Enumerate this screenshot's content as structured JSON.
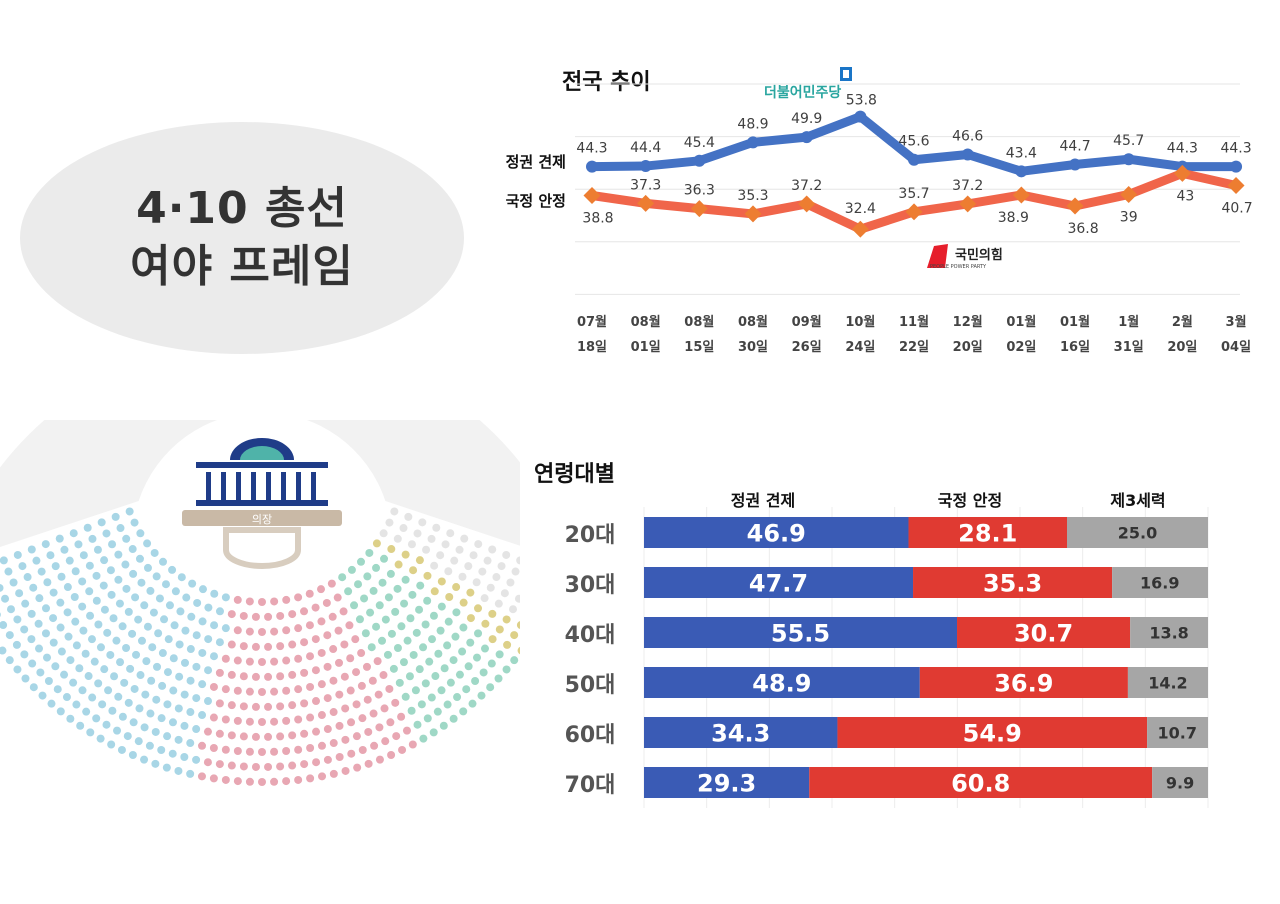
{
  "headline": {
    "line1": "4·10 총선",
    "line2": "여야 프레임"
  },
  "chart_data": [
    {
      "type": "line",
      "title": "전국 추이",
      "categories": [
        [
          "07월",
          "18일"
        ],
        [
          "08월",
          "01일"
        ],
        [
          "08월",
          "15일"
        ],
        [
          "08월",
          "30일"
        ],
        [
          "09월",
          "26일"
        ],
        [
          "10월",
          "24일"
        ],
        [
          "11월",
          "22일"
        ],
        [
          "12월",
          "20일"
        ],
        [
          "01월",
          "02일"
        ],
        [
          "01월",
          "16일"
        ],
        [
          "1월",
          "31일"
        ],
        [
          "2월",
          "20일"
        ],
        [
          "3월",
          "04일"
        ]
      ],
      "ylim": [
        20,
        60
      ],
      "grid": true,
      "series": [
        {
          "name": "정권 견제",
          "color": "#4472c4",
          "values": [
            44.3,
            44.4,
            45.4,
            48.9,
            49.9,
            53.8,
            45.6,
            46.6,
            43.4,
            44.7,
            45.7,
            44.3,
            44.3
          ],
          "labels": [
            "44.3",
            "44.4",
            "45.4",
            "48.9",
            "49.9",
            "53.8",
            "45.6",
            "46.6",
            "43.4",
            "44.7",
            "45.7",
            "44.3",
            "44.3"
          ]
        },
        {
          "name": "국정 안정",
          "color": "#f0654a",
          "marker_color": "#ed7d31",
          "values": [
            38.8,
            37.3,
            36.3,
            35.3,
            37.2,
            32.4,
            35.7,
            37.2,
            38.9,
            36.8,
            39,
            43,
            40.7
          ],
          "labels": [
            "38.8",
            "37.3",
            "36.3",
            "35.3",
            "37.2",
            "32.4",
            "35.7",
            "37.2",
            "38.9",
            "36.8",
            "39",
            "43",
            "40.7"
          ]
        }
      ],
      "annotations": {
        "dem_logo": "더불어민주당",
        "ppp_logo": "국민의힘",
        "ppp_sub": "PEOPLE POWER PARTY"
      }
    },
    {
      "type": "bar",
      "stacked": true,
      "orientation": "horizontal",
      "title": "연령대별",
      "categories": [
        "20대",
        "30대",
        "40대",
        "50대",
        "60대",
        "70대"
      ],
      "xlim": [
        0,
        100
      ],
      "series": [
        {
          "name": "정권 견제",
          "color": "#3a5bb5",
          "values": [
            46.9,
            47.7,
            55.5,
            48.9,
            34.3,
            29.3
          ],
          "labels": [
            "46.9",
            "47.7",
            "55.5",
            "48.9",
            "34.3",
            "29.3"
          ]
        },
        {
          "name": "국정 안정",
          "color": "#e03a32",
          "values": [
            28.1,
            35.3,
            30.7,
            36.9,
            54.9,
            60.8
          ],
          "labels": [
            "28.1",
            "35.3",
            "30.7",
            "36.9",
            "54.9",
            "60.8"
          ]
        },
        {
          "name": "제3세력",
          "color": "#a6a6a6",
          "values": [
            25.0,
            16.9,
            13.8,
            14.2,
            10.7,
            9.9
          ],
          "labels": [
            "25.0",
            "16.9",
            "13.8",
            "14.2",
            "10.7",
            "9.9"
          ]
        }
      ]
    }
  ],
  "parliament": {
    "icon": "national-assembly-icon",
    "chair_label": "의장"
  }
}
